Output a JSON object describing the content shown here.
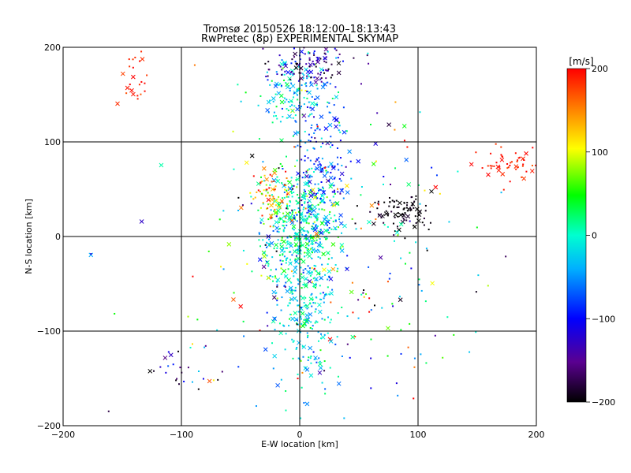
{
  "chart_data": {
    "type": "scatter",
    "title": "Tromsø 20150526 18:12:00–18:13:43",
    "subtitle": "RwPretec (8p) EXPERIMENTAL SKYMAP",
    "xlabel": "E-W location [km]",
    "ylabel": "N-S location [km]",
    "xlim": [
      -200,
      200
    ],
    "ylim": [
      -200,
      200
    ],
    "x_ticks": [
      -200,
      -100,
      0,
      100,
      200
    ],
    "y_ticks": [
      -200,
      -100,
      0,
      100,
      200
    ],
    "x_tick_labels": [
      "−200",
      "−100",
      "0",
      "100",
      "200"
    ],
    "y_tick_labels": [
      "−200",
      "−100",
      "0",
      "100",
      "200"
    ],
    "grid": true,
    "colorbar": {
      "label": "[m/s]",
      "range": [
        -200,
        200
      ],
      "ticks": [
        -200,
        -100,
        0,
        100,
        200
      ],
      "tick_labels": [
        "−200",
        "−100",
        "0",
        "100",
        "200"
      ],
      "colormap": "rainbow",
      "placement": "right"
    },
    "markers": [
      "dot",
      "cross"
    ],
    "clusters": [
      {
        "x": 0,
        "y": 10,
        "sx": 18,
        "sy": 30,
        "n": 420,
        "v": 0,
        "sv": 45
      },
      {
        "x": 5,
        "y": -70,
        "sx": 14,
        "sy": 40,
        "n": 260,
        "v": -20,
        "sv": 30
      },
      {
        "x": -5,
        "y": 150,
        "sx": 15,
        "sy": 20,
        "n": 140,
        "v": -10,
        "sv": 40
      },
      {
        "x": 5,
        "y": 180,
        "sx": 18,
        "sy": 10,
        "n": 110,
        "v": -140,
        "sv": 40
      },
      {
        "x": 20,
        "y": 80,
        "sx": 12,
        "sy": 40,
        "n": 160,
        "v": -80,
        "sv": 35
      },
      {
        "x": -25,
        "y": 45,
        "sx": 10,
        "sy": 12,
        "n": 70,
        "v": 150,
        "sv": 40
      },
      {
        "x": 88,
        "y": 25,
        "sx": 14,
        "sy": 10,
        "n": 90,
        "v": -195,
        "sv": 10
      },
      {
        "x": 180,
        "y": 78,
        "sx": 14,
        "sy": 8,
        "n": 55,
        "v": 190,
        "sv": 10
      },
      {
        "x": -140,
        "y": 165,
        "sx": 8,
        "sy": 20,
        "n": 25,
        "v": 190,
        "sv": 10
      },
      {
        "x": -100,
        "y": -140,
        "sx": 14,
        "sy": 14,
        "n": 25,
        "v": -130,
        "sv": 70
      },
      {
        "x": 30,
        "y": -20,
        "sx": 70,
        "sy": 90,
        "n": 260,
        "v": 0,
        "sv": 110
      }
    ]
  }
}
